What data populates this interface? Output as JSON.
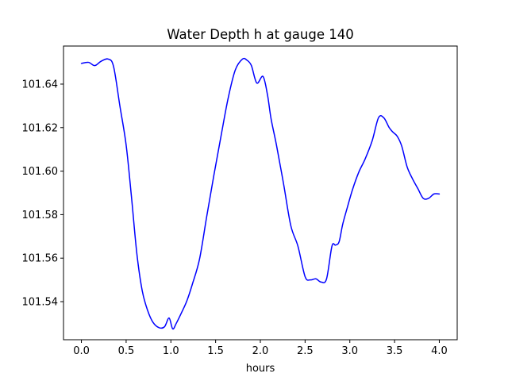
{
  "chart_data": {
    "type": "line",
    "title": "Water Depth h at gauge 140",
    "xlabel": "hours",
    "ylabel": "",
    "xlim": [
      -0.2,
      4.2
    ],
    "ylim": [
      101.5225,
      101.6575
    ],
    "xticks": [
      0.0,
      0.5,
      1.0,
      1.5,
      2.0,
      2.5,
      3.0,
      3.5,
      4.0
    ],
    "xtick_labels": [
      "0.0",
      "0.5",
      "1.0",
      "1.5",
      "2.0",
      "2.5",
      "3.0",
      "3.5",
      "4.0"
    ],
    "yticks": [
      101.54,
      101.56,
      101.58,
      101.6,
      101.62,
      101.64
    ],
    "ytick_labels": [
      "101.54",
      "101.56",
      "101.58",
      "101.60",
      "101.62",
      "101.64"
    ],
    "grid": false,
    "legend": "none",
    "series": [
      {
        "color": "#0000ff",
        "x": [
          0.0,
          0.08,
          0.15,
          0.22,
          0.3,
          0.36,
          0.43,
          0.5,
          0.56,
          0.62,
          0.68,
          0.74,
          0.8,
          0.87,
          0.93,
          0.98,
          1.02,
          1.06,
          1.12,
          1.18,
          1.24,
          1.32,
          1.4,
          1.48,
          1.56,
          1.64,
          1.72,
          1.8,
          1.85,
          1.9,
          1.96,
          2.03,
          2.08,
          2.12,
          2.18,
          2.26,
          2.34,
          2.42,
          2.5,
          2.56,
          2.62,
          2.68,
          2.74,
          2.8,
          2.84,
          2.88,
          2.92,
          2.97,
          3.03,
          3.1,
          3.17,
          3.25,
          3.32,
          3.38,
          3.44,
          3.48,
          3.53,
          3.58,
          3.64,
          3.7,
          3.76,
          3.82,
          3.88,
          3.94,
          4.0
        ],
        "y": [
          101.6495,
          101.65,
          101.6485,
          101.6505,
          101.6515,
          101.648,
          101.63,
          101.612,
          101.588,
          101.562,
          101.545,
          101.536,
          101.5305,
          101.528,
          101.5285,
          101.5325,
          101.5275,
          101.53,
          101.535,
          101.5405,
          101.548,
          101.5595,
          101.579,
          101.598,
          101.616,
          101.6335,
          101.6465,
          101.6515,
          101.651,
          101.6485,
          101.6405,
          101.6435,
          101.635,
          101.624,
          101.612,
          101.594,
          101.575,
          101.5655,
          101.5515,
          101.55,
          101.5505,
          101.549,
          101.5505,
          101.5655,
          101.566,
          101.5675,
          101.5755,
          101.583,
          101.5915,
          101.5995,
          101.6055,
          101.614,
          101.6245,
          101.6245,
          101.62,
          101.618,
          101.616,
          101.6115,
          101.602,
          101.5965,
          101.592,
          101.5875,
          101.5875,
          101.5895,
          101.5895
        ]
      }
    ]
  }
}
